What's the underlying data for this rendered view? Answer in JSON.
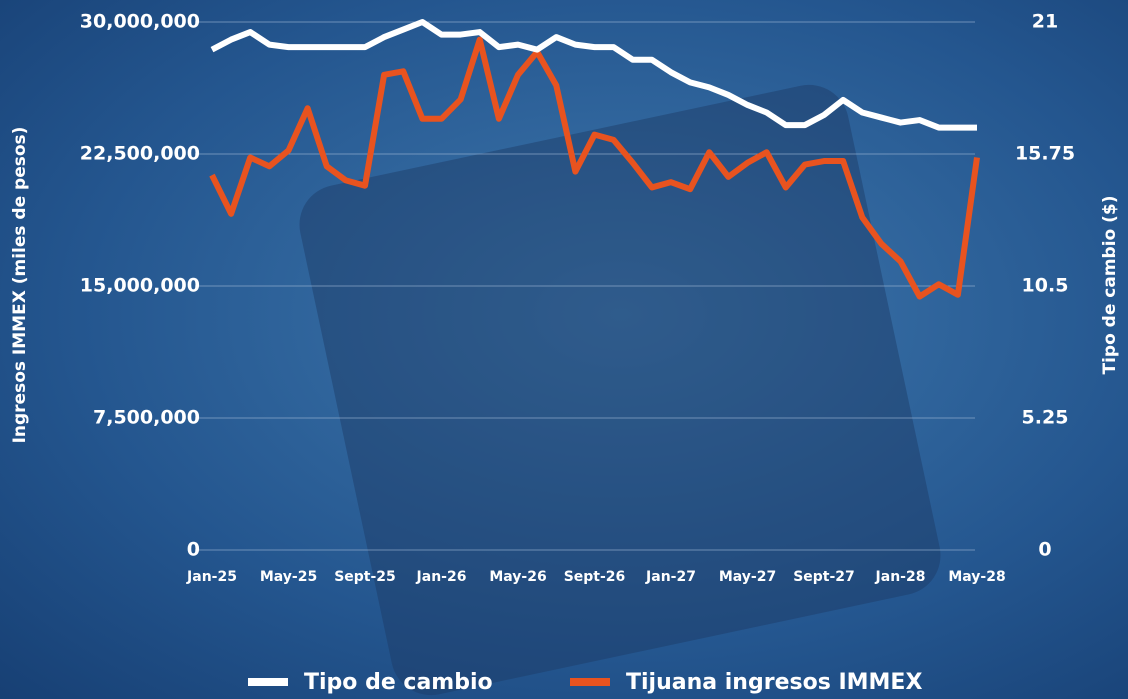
{
  "chart_data": {
    "type": "line",
    "y_label": "Ingresos IMMEX (miles de pesos)",
    "y2_label": "Tipo de cambio ($)",
    "categories": [
      "Jan-25",
      null,
      null,
      null,
      "May-25",
      null,
      null,
      null,
      "Sept-25",
      null,
      null,
      null,
      "Jan-26",
      null,
      null,
      null,
      "May-26",
      null,
      null,
      null,
      "Sept-26",
      null,
      null,
      null,
      "Jan-27",
      null,
      null,
      null,
      "May-27",
      null,
      null,
      null,
      "Sept-27",
      null,
      null,
      null,
      "Jan-28",
      null,
      null,
      null,
      "May-28"
    ],
    "series": [
      {
        "name": "Tipo de cambio",
        "color": "#ffffff",
        "axis": "y2",
        "values": [
          19.9,
          20.3,
          20.6,
          20.1,
          20.0,
          20.0,
          20.0,
          20.0,
          20.0,
          20.4,
          20.7,
          21.0,
          20.5,
          20.5,
          20.6,
          20.0,
          20.1,
          19.9,
          20.4,
          20.1,
          20.0,
          20.0,
          19.5,
          19.5,
          19.0,
          18.6,
          18.4,
          18.1,
          17.7,
          17.4,
          16.9,
          16.9,
          17.3,
          17.9,
          17.4,
          17.2,
          17.0,
          17.1,
          16.8,
          16.8,
          16.8
        ]
      },
      {
        "name": "Tijuana ingresos IMMEX",
        "color": "#e8531f",
        "values": [
          21300000,
          19100000,
          22300000,
          21800000,
          22700000,
          25100000,
          21800000,
          21000000,
          20700000,
          27000000,
          27200000,
          24500000,
          24500000,
          25600000,
          29000000,
          24500000,
          27000000,
          28300000,
          26400000,
          21500000,
          23600000,
          23300000,
          22000000,
          20600000,
          20900000,
          20500000,
          22600000,
          21200000,
          22000000,
          22600000,
          20600000,
          21900000,
          22100000,
          22100000,
          18900000,
          17400000,
          16400000,
          14400000,
          15100000,
          14500000,
          22300000
        ]
      }
    ],
    "ylim": [
      0,
      30000000
    ],
    "yticks": [
      0,
      {
        "value": 7500000,
        "label": "7,500,000"
      },
      {
        "value": 15000000,
        "label": "15,000,000"
      },
      {
        "value": 22500000,
        "label": "22,500,000"
      },
      {
        "value": 30000000,
        "label": "30,000,000"
      }
    ],
    "y2lim": [
      0,
      21
    ],
    "y2ticks": [
      0,
      5.25,
      10.5,
      15.75,
      21
    ],
    "grid": true
  }
}
